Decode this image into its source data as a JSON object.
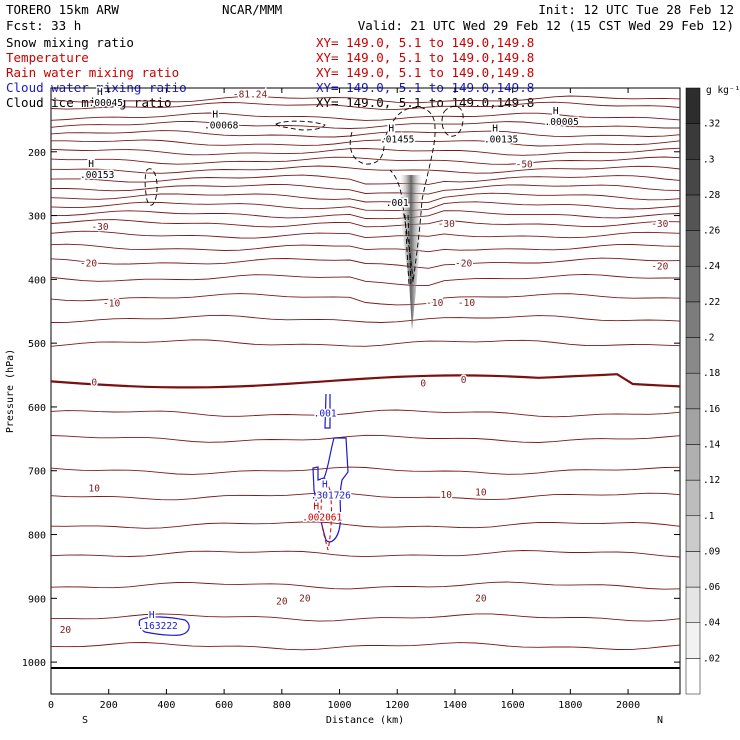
{
  "header": {
    "model": "TORERO 15km ARW",
    "org": "NCAR/MMM",
    "init": "Init: 12 UTC Tue 28 Feb 12",
    "fcst": "Fcst:   33 h",
    "valid": "Valid: 21 UTC Wed 29 Feb 12 (15 CST Wed 29 Feb 12)"
  },
  "legend": [
    {
      "name": "Snow mixing ratio",
      "xy": "",
      "color": "#000000"
    },
    {
      "name": "Temperature",
      "xy": "XY= 149.0,  5.1 to 149.0,149.8",
      "color": "#cc0000"
    },
    {
      "name": "Rain water mixing ratio",
      "xy": "XY= 149.0,  5.1 to 149.0,149.8",
      "color": "#cc0000"
    },
    {
      "name": "Cloud water mixing ratio",
      "xy": "XY= 149.0,  5.1 to 149.0,149.8",
      "color": "#1a1acc"
    },
    {
      "name": "Cloud ice mixing ratio",
      "xy": "XY= 149.0,  5.1 to 149.0,149.8",
      "color": "#000000"
    }
  ],
  "legend_first_xy": "XY= 149.0,  5.1 to 149.0,149.8",
  "colors": {
    "isotherm": "#7a1a1a",
    "zero_isotherm": "#7a1010",
    "rain": "#cc0000",
    "cloud_water": "#1a1acc",
    "ice": "#000000"
  },
  "chart_data": {
    "type": "contour",
    "xlabel": "Distance (km)",
    "ylabel": "Pressure (hPa)",
    "x_range": [
      0,
      2180
    ],
    "y_range": [
      1050,
      100
    ],
    "x_ticks": [
      0,
      200,
      400,
      600,
      800,
      1000,
      1200,
      1400,
      1600,
      1800,
      2000
    ],
    "y_ticks": [
      200,
      300,
      400,
      500,
      600,
      700,
      800,
      900,
      1000
    ],
    "x_end_labels": {
      "left": "S",
      "right": "N"
    },
    "colorbar": {
      "units": "g kg⁻¹",
      "ticks": [
        ".02",
        ".04",
        ".06",
        ".09",
        ".1",
        ".12",
        ".14",
        ".16",
        ".18",
        ".2",
        ".22",
        ".24",
        ".26",
        ".28",
        ".3",
        ".32"
      ]
    },
    "temperature_labels": [
      {
        "text": "-81.24",
        "x": 690,
        "p": 110
      },
      {
        "text": "-50",
        "x": 1640,
        "p": 220
      },
      {
        "text": "-30",
        "x": 170,
        "p": 318
      },
      {
        "text": "-30",
        "x": 1370,
        "p": 313
      },
      {
        "text": "-30",
        "x": 2110,
        "p": 313
      },
      {
        "text": "-20",
        "x": 130,
        "p": 375
      },
      {
        "text": "-20",
        "x": 1430,
        "p": 375
      },
      {
        "text": "-20",
        "x": 2110,
        "p": 380
      },
      {
        "text": "-10",
        "x": 210,
        "p": 438
      },
      {
        "text": "-10",
        "x": 1330,
        "p": 437
      },
      {
        "text": "-10",
        "x": 1440,
        "p": 437
      },
      {
        "text": "0",
        "x": 150,
        "p": 562
      },
      {
        "text": "0",
        "x": 1290,
        "p": 563
      },
      {
        "text": "0",
        "x": 1430,
        "p": 558
      },
      {
        "text": "10",
        "x": 150,
        "p": 728
      },
      {
        "text": "10",
        "x": 1370,
        "p": 738
      },
      {
        "text": "10",
        "x": 1490,
        "p": 734
      },
      {
        "text": "20",
        "x": 800,
        "p": 905
      },
      {
        "text": "20",
        "x": 880,
        "p": 900
      },
      {
        "text": "20",
        "x": 1490,
        "p": 900
      },
      {
        "text": "20",
        "x": 50,
        "p": 950
      }
    ],
    "max_labels": [
      {
        "h": "H",
        "value": ".00045",
        "x": 190,
        "p": 125,
        "color": "ice"
      },
      {
        "h": "H",
        "value": ".00068",
        "x": 590,
        "p": 160,
        "color": "ice"
      },
      {
        "h": "H",
        "value": ".01455",
        "x": 1200,
        "p": 182,
        "color": "ice"
      },
      {
        "h": "H",
        "value": ".00135",
        "x": 1560,
        "p": 182,
        "color": "ice"
      },
      {
        "h": "H",
        "value": ".00005",
        "x": 1770,
        "p": 155,
        "color": "ice"
      },
      {
        "h": "H",
        "value": ".00153",
        "x": 160,
        "p": 238,
        "color": "ice"
      },
      {
        "h": "",
        "value": ".001",
        "x": 1200,
        "p": 282,
        "color": "ice"
      },
      {
        "h": "",
        "value": ".001",
        "x": 950,
        "p": 612,
        "color": "cloud_water"
      },
      {
        "h": "H",
        "value": ".301726",
        "x": 970,
        "p": 740,
        "color": "cloud_water"
      },
      {
        "h": "H",
        "value": ".002061",
        "x": 940,
        "p": 775,
        "color": "rain"
      },
      {
        "h": "H",
        "value": ".163222",
        "x": 370,
        "p": 945,
        "color": "cloud_water"
      }
    ]
  }
}
